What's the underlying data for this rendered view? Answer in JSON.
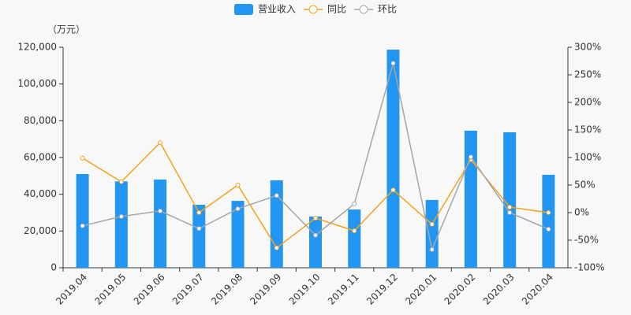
{
  "chart_data": {
    "type": "bar-line",
    "y_unit_label": "（万元）",
    "categories": [
      "2019.04",
      "2019.05",
      "2019.06",
      "2019.07",
      "2019.08",
      "2019.09",
      "2019.10",
      "2019.11",
      "2019.12",
      "2020.01",
      "2020.02",
      "2020.03",
      "2020.04"
    ],
    "series": [
      {
        "name": "营业收入",
        "type": "bar",
        "color": "#2196f3",
        "values": [
          51000,
          47000,
          48000,
          34300,
          36400,
          47600,
          27900,
          31700,
          118700,
          36900,
          74600,
          73700,
          50600
        ]
      },
      {
        "name": "同比",
        "type": "line",
        "axis": "y2",
        "color": "#f5a21b",
        "values": [
          99,
          56,
          127,
          0,
          50,
          -64,
          -10,
          -33,
          41,
          -21,
          96,
          10,
          0
        ]
      },
      {
        "name": "环比",
        "type": "line",
        "axis": "y2",
        "color": "#a6a6a6",
        "values": [
          -24,
          -7,
          3,
          -29,
          7,
          31,
          -41,
          16,
          271,
          -67,
          101,
          0,
          -30
        ]
      }
    ],
    "ylim": [
      0,
      120000
    ],
    "yticks": [
      0,
      {
        "value": 20000,
        "label": "20,000"
      },
      {
        "value": 40000,
        "label": "40,000"
      },
      {
        "value": 60000,
        "label": "60,000"
      },
      {
        "value": 80000,
        "label": "80,000"
      },
      {
        "value": 100000,
        "label": "100,000"
      },
      {
        "value": 120000,
        "label": "120,000"
      }
    ],
    "y2lim": [
      -100,
      300
    ],
    "y2ticks": [
      {
        "value": -100,
        "label": "-100%"
      },
      {
        "value": -50,
        "label": "-50%"
      },
      {
        "value": 0,
        "label": "0%"
      },
      {
        "value": 50,
        "label": "50%"
      },
      {
        "value": 100,
        "label": "100%"
      },
      {
        "value": 150,
        "label": "150%"
      },
      {
        "value": 200,
        "label": "200%"
      },
      {
        "value": 250,
        "label": "250%"
      },
      {
        "value": 300,
        "label": "300%"
      }
    ],
    "grid": false
  }
}
